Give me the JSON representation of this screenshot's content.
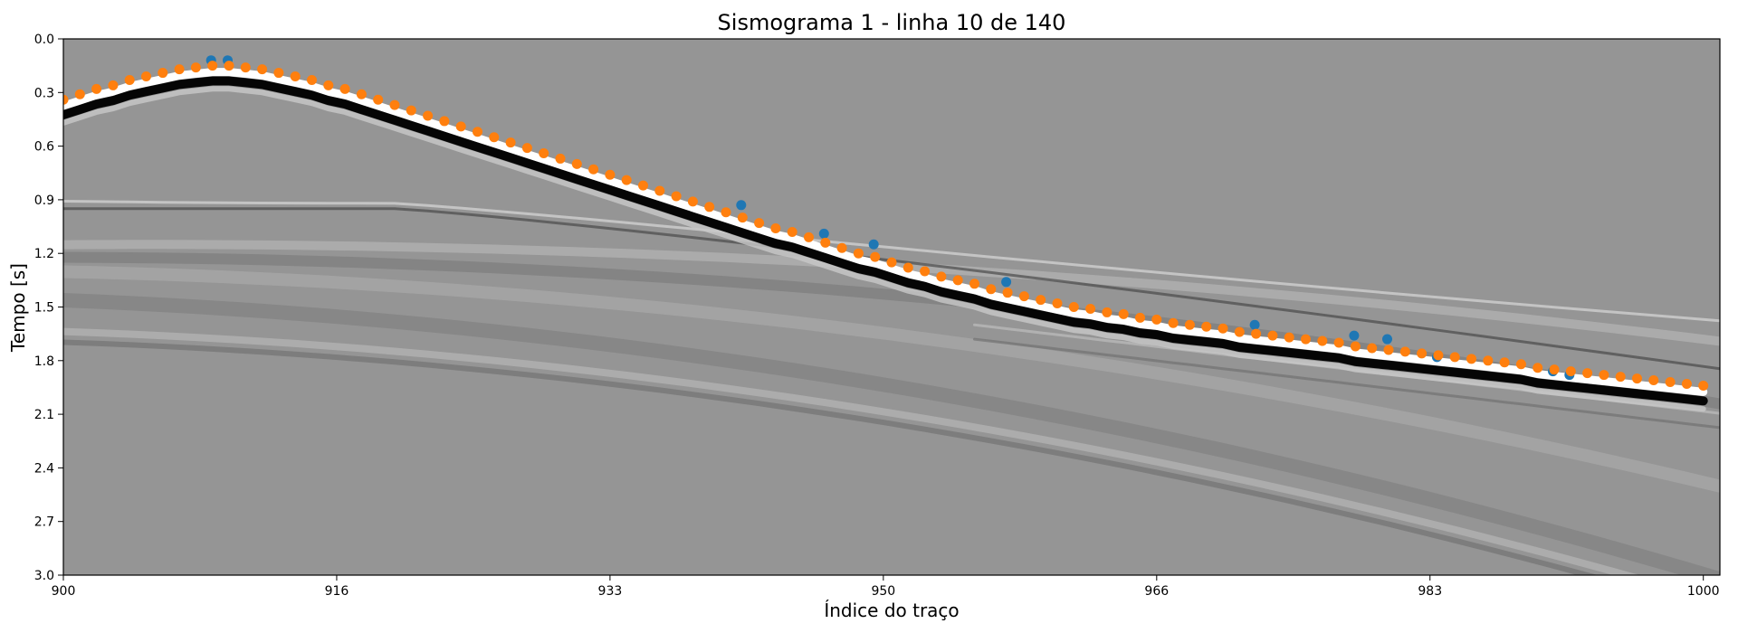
{
  "chart_data": {
    "type": "scatter",
    "title": "Sismograma 1 - linha 10 de 140",
    "xlabel": "Índice do traço",
    "ylabel": "Tempo [s]",
    "xlim": [
      900,
      1000
    ],
    "ylim": [
      3.0,
      0.0
    ],
    "y_inverted": true,
    "xticks": [
      "900",
      "916",
      "933",
      "950",
      "966",
      "983",
      "1000"
    ],
    "xtick_values": [
      900,
      916.5,
      933,
      949.5,
      966,
      982.5,
      999
    ],
    "yticks": [
      "0.0",
      "0.3",
      "0.6",
      "0.9",
      "1.2",
      "1.5",
      "1.8",
      "2.1",
      "2.4",
      "2.7",
      "3.0"
    ],
    "ytick_values": [
      0.0,
      0.3,
      0.6,
      0.9,
      1.2,
      1.5,
      1.8,
      2.1,
      2.4,
      2.7,
      3.0
    ],
    "background": "grayscale seismic image (first-break arrival with reflections)",
    "grid": false,
    "series": [
      {
        "color": "#ff7f0e",
        "x": [
          900,
          901,
          902,
          903,
          904,
          905,
          906,
          907,
          908,
          909,
          910,
          911,
          912,
          913,
          914,
          915,
          916,
          917,
          918,
          919,
          920,
          921,
          922,
          923,
          924,
          925,
          926,
          927,
          928,
          929,
          930,
          931,
          932,
          933,
          934,
          935,
          936,
          937,
          938,
          939,
          940,
          941,
          942,
          943,
          944,
          945,
          946,
          947,
          948,
          949,
          950,
          951,
          952,
          953,
          954,
          955,
          956,
          957,
          958,
          959,
          960,
          961,
          962,
          963,
          964,
          965,
          966,
          967,
          968,
          969,
          970,
          971,
          972,
          973,
          974,
          975,
          976,
          977,
          978,
          979,
          980,
          981,
          982,
          983,
          984,
          985,
          986,
          987,
          988,
          989,
          990,
          991,
          992,
          993,
          994,
          995,
          996,
          997,
          998,
          999
        ],
        "y": [
          0.34,
          0.31,
          0.28,
          0.26,
          0.23,
          0.21,
          0.19,
          0.17,
          0.16,
          0.15,
          0.15,
          0.16,
          0.17,
          0.19,
          0.21,
          0.23,
          0.26,
          0.28,
          0.31,
          0.34,
          0.37,
          0.4,
          0.43,
          0.46,
          0.49,
          0.52,
          0.55,
          0.58,
          0.61,
          0.64,
          0.67,
          0.7,
          0.73,
          0.76,
          0.79,
          0.82,
          0.85,
          0.88,
          0.91,
          0.94,
          0.97,
          1.0,
          1.03,
          1.06,
          1.08,
          1.11,
          1.14,
          1.17,
          1.2,
          1.22,
          1.25,
          1.28,
          1.3,
          1.33,
          1.35,
          1.37,
          1.4,
          1.42,
          1.44,
          1.46,
          1.48,
          1.5,
          1.51,
          1.53,
          1.54,
          1.56,
          1.57,
          1.59,
          1.6,
          1.61,
          1.62,
          1.64,
          1.65,
          1.66,
          1.67,
          1.68,
          1.69,
          1.7,
          1.72,
          1.73,
          1.74,
          1.75,
          1.76,
          1.77,
          1.78,
          1.79,
          1.8,
          1.81,
          1.82,
          1.84,
          1.85,
          1.86,
          1.87,
          1.88,
          1.89,
          1.9,
          1.91,
          1.92,
          1.93,
          1.94
        ]
      },
      {
        "color": "#1f77b4",
        "x": [
          909,
          910,
          941,
          946,
          949,
          957,
          972,
          978,
          980,
          983,
          990,
          991
        ],
        "y": [
          0.13,
          0.13,
          0.94,
          1.1,
          1.16,
          1.37,
          1.61,
          1.67,
          1.69,
          1.79,
          1.87,
          1.89
        ]
      }
    ]
  }
}
